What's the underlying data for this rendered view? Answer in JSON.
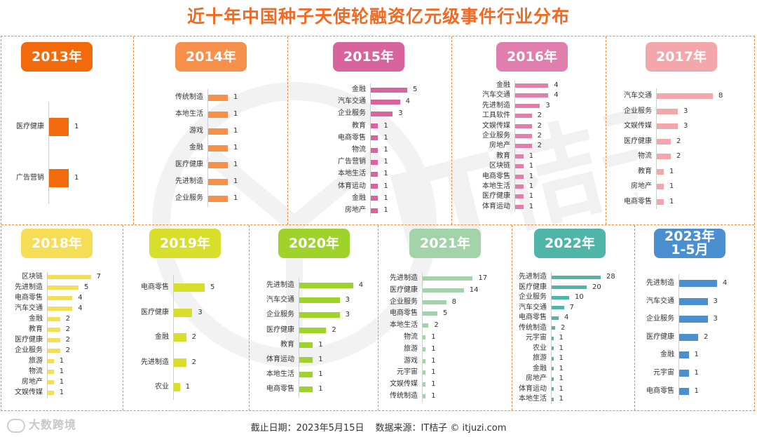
{
  "title": "近十年中国种子天使轮融资亿元级事件行业分布",
  "footer": {
    "date": "截止日期：2023年5月15日",
    "source": "数据来源：IT桔子 © itjuzi.com"
  },
  "logo": {
    "text": "大数跨境",
    "icon": "brand-logo-icon"
  },
  "watermark_text": "IT桔子 ITJUZI.COM",
  "chart_data": [
    {
      "type": "bar",
      "year": "2013年",
      "color": "#f26a0c",
      "categories": [
        "医疗健康",
        "广告营销"
      ],
      "values": [
        1,
        1
      ]
    },
    {
      "type": "bar",
      "year": "2014年",
      "color": "#f7904a",
      "categories": [
        "传统制造",
        "本地生活",
        "游戏",
        "金融",
        "医疗健康",
        "先进制造",
        "企业服务"
      ],
      "values": [
        1,
        1,
        1,
        1,
        1,
        1,
        1
      ]
    },
    {
      "type": "bar",
      "year": "2015年",
      "color": "#d8639d",
      "categories": [
        "金融",
        "汽车交通",
        "企业服务",
        "教育",
        "电商零售",
        "物流",
        "广告营销",
        "本地生活",
        "体育运动",
        "金融",
        "房地产"
      ],
      "values": [
        5,
        4,
        3,
        1,
        1,
        1,
        1,
        1,
        1,
        1,
        1
      ]
    },
    {
      "type": "bar",
      "year": "2016年",
      "color": "#e07fae",
      "categories": [
        "金融",
        "汽车交通",
        "先进制造",
        "工具软件",
        "文娱传媒",
        "企业服务",
        "房地产",
        "教育",
        "区块链",
        "电商零售",
        "本地生活",
        "医疗健康",
        "体育运动"
      ],
      "values": [
        4,
        4,
        3,
        2,
        2,
        2,
        2,
        1,
        1,
        1,
        1,
        1,
        1
      ]
    },
    {
      "type": "bar",
      "year": "2017年",
      "color": "#f4a7ab",
      "categories": [
        "汽车交通",
        "企业服务",
        "文娱传媒",
        "医疗健康",
        "物流",
        "教育",
        "房地产",
        "电商零售"
      ],
      "values": [
        8,
        3,
        3,
        2,
        2,
        1,
        1,
        1
      ]
    },
    {
      "type": "bar",
      "year": "2018年",
      "color": "#f5de55",
      "categories": [
        "区块链",
        "先进制造",
        "电商零售",
        "汽车交通",
        "金融",
        "教育",
        "医疗健康",
        "企业服务",
        "旅游",
        "物流",
        "房地产",
        "文娱传媒"
      ],
      "values": [
        7,
        5,
        4,
        4,
        2,
        2,
        2,
        2,
        1,
        1,
        1,
        1
      ]
    },
    {
      "type": "bar",
      "year": "2019年",
      "color": "#d7df2a",
      "categories": [
        "电商零售",
        "医疗健康",
        "金融",
        "先进制造",
        "农业"
      ],
      "values": [
        5,
        3,
        2,
        2,
        1
      ]
    },
    {
      "type": "bar",
      "year": "2020年",
      "color": "#9fd32b",
      "categories": [
        "先进制造",
        "汽车交通",
        "企业服务",
        "医疗健康",
        "教育",
        "体育运动",
        "本地生活",
        "电商零售"
      ],
      "values": [
        4,
        3,
        3,
        2,
        1,
        1,
        1,
        1
      ]
    },
    {
      "type": "bar",
      "year": "2021年",
      "color": "#a3d3a8",
      "categories": [
        "先进制造",
        "医疗健康",
        "企业服务",
        "电商零售",
        "本地生活",
        "物流",
        "旅游",
        "游戏",
        "元宇宙",
        "文娱传媒",
        "传统制造"
      ],
      "values": [
        17,
        14,
        8,
        5,
        2,
        1,
        1,
        1,
        1,
        1,
        1
      ]
    },
    {
      "type": "bar",
      "year": "2022年",
      "color": "#4fb5a8",
      "categories": [
        "先进制造",
        "医疗健康",
        "企业服务",
        "汽车交通",
        "电商零售",
        "传统制造",
        "元宇宙",
        "农业",
        "旅游",
        "金融",
        "房地产",
        "体育运动",
        "本地生活"
      ],
      "values": [
        28,
        20,
        10,
        7,
        4,
        2,
        1,
        1,
        1,
        1,
        1,
        1,
        1
      ]
    },
    {
      "type": "bar",
      "year": "2023年\n1-5月",
      "color": "#4a90d0",
      "categories": [
        "先进制造",
        "汽车交通",
        "企业服务",
        "医疗健康",
        "金融",
        "元宇宙",
        "电商零售"
      ],
      "values": [
        4,
        3,
        3,
        2,
        1,
        1,
        1
      ]
    }
  ]
}
